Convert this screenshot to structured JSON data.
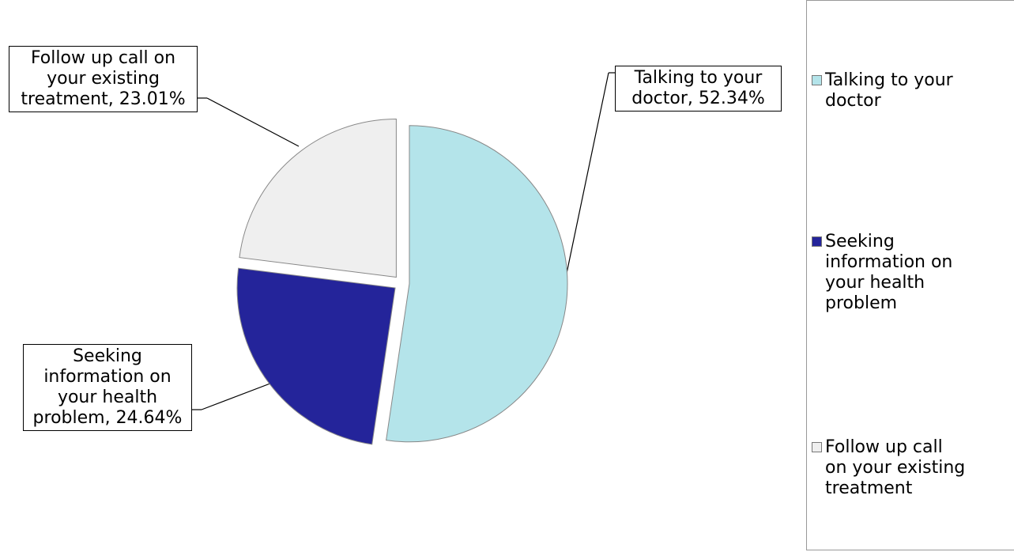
{
  "chart_data": {
    "type": "pie",
    "categories": [
      "Talking to your doctor",
      "Seeking information on your health problem",
      "Follow up call on your existing treatment"
    ],
    "values": [
      52.34,
      24.64,
      23.01
    ],
    "value_labels": [
      "Talking to your doctor, 52.34%",
      "Seeking information on your health problem, 24.64%",
      "Follow up call on your existing treatment, 23.01%"
    ],
    "colors": [
      "#b4e4ea",
      "#24249a",
      "#efefef"
    ],
    "legend": "right"
  }
}
